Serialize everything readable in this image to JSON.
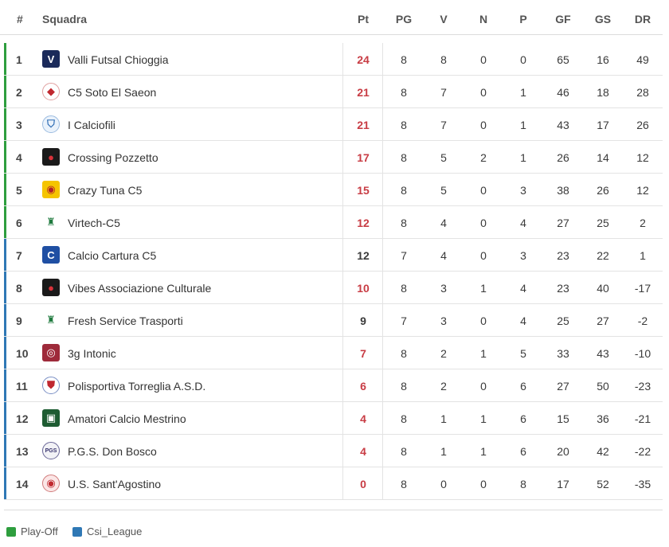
{
  "header": {
    "pos": "#",
    "team": "Squadra",
    "pt": "Pt",
    "pg": "PG",
    "v": "V",
    "n": "N",
    "p": "P",
    "gf": "GF",
    "gs": "GS",
    "dr": "DR"
  },
  "colors": {
    "playoff": "#2e9e3e",
    "csi": "#2f78b5",
    "red_points": "#c83c44",
    "dark_points": "#3a3a3a"
  },
  "rows": [
    {
      "pos": "1",
      "team": "Valli Futsal Chioggia",
      "pt": "24",
      "pg": "8",
      "v": "8",
      "n": "0",
      "p": "0",
      "gf": "65",
      "gs": "16",
      "dr": "49",
      "zone": "playoff",
      "pt_red": true,
      "logo": "crest-dark-blue"
    },
    {
      "pos": "2",
      "team": "C5 Soto El Saeon",
      "pt": "21",
      "pg": "8",
      "v": "7",
      "n": "0",
      "p": "1",
      "gf": "46",
      "gs": "18",
      "dr": "28",
      "zone": "playoff",
      "pt_red": true,
      "logo": "crest-red-white"
    },
    {
      "pos": "3",
      "team": "I Calciofili",
      "pt": "21",
      "pg": "8",
      "v": "7",
      "n": "0",
      "p": "1",
      "gf": "43",
      "gs": "17",
      "dr": "26",
      "zone": "playoff",
      "pt_red": true,
      "logo": "crest-light-blue"
    },
    {
      "pos": "4",
      "team": "Crossing Pozzetto",
      "pt": "17",
      "pg": "8",
      "v": "5",
      "n": "2",
      "p": "1",
      "gf": "26",
      "gs": "14",
      "dr": "12",
      "zone": "playoff",
      "pt_red": true,
      "logo": "crest-black-red"
    },
    {
      "pos": "5",
      "team": "Crazy Tuna C5",
      "pt": "15",
      "pg": "8",
      "v": "5",
      "n": "0",
      "p": "3",
      "gf": "38",
      "gs": "26",
      "dr": "12",
      "zone": "playoff",
      "pt_red": true,
      "logo": "crest-yellow"
    },
    {
      "pos": "6",
      "team": "Virtech-C5",
      "pt": "12",
      "pg": "8",
      "v": "4",
      "n": "0",
      "p": "4",
      "gf": "27",
      "gs": "25",
      "dr": "2",
      "zone": "playoff",
      "pt_red": true,
      "logo": "crest-green"
    },
    {
      "pos": "7",
      "team": "Calcio Cartura C5",
      "pt": "12",
      "pg": "7",
      "v": "4",
      "n": "0",
      "p": "3",
      "gf": "23",
      "gs": "22",
      "dr": "1",
      "zone": "csi",
      "pt_red": false,
      "logo": "crest-blue-shield"
    },
    {
      "pos": "8",
      "team": "Vibes Associazione Culturale",
      "pt": "10",
      "pg": "8",
      "v": "3",
      "n": "1",
      "p": "4",
      "gf": "23",
      "gs": "40",
      "dr": "-17",
      "zone": "csi",
      "pt_red": true,
      "logo": "crest-black-red"
    },
    {
      "pos": "9",
      "team": "Fresh Service Trasporti",
      "pt": "9",
      "pg": "7",
      "v": "3",
      "n": "0",
      "p": "4",
      "gf": "25",
      "gs": "27",
      "dr": "-2",
      "zone": "csi",
      "pt_red": false,
      "logo": "crest-green"
    },
    {
      "pos": "10",
      "team": "3g Intonic",
      "pt": "7",
      "pg": "8",
      "v": "2",
      "n": "1",
      "p": "5",
      "gf": "33",
      "gs": "43",
      "dr": "-10",
      "zone": "csi",
      "pt_red": true,
      "logo": "crest-maroon"
    },
    {
      "pos": "11",
      "team": "Polisportiva Torreglia A.S.D.",
      "pt": "6",
      "pg": "8",
      "v": "2",
      "n": "0",
      "p": "6",
      "gf": "27",
      "gs": "50",
      "dr": "-23",
      "zone": "csi",
      "pt_red": true,
      "logo": "crest-red-blue"
    },
    {
      "pos": "12",
      "team": "Amatori Calcio Mestrino",
      "pt": "4",
      "pg": "8",
      "v": "1",
      "n": "1",
      "p": "6",
      "gf": "15",
      "gs": "36",
      "dr": "-21",
      "zone": "csi",
      "pt_red": true,
      "logo": "crest-dark-green"
    },
    {
      "pos": "13",
      "team": "P.G.S. Don Bosco",
      "pt": "4",
      "pg": "8",
      "v": "1",
      "n": "1",
      "p": "6",
      "gf": "20",
      "gs": "42",
      "dr": "-22",
      "zone": "csi",
      "pt_red": true,
      "logo": "crest-pgs"
    },
    {
      "pos": "14",
      "team": "U.S. Sant'Agostino",
      "pt": "0",
      "pg": "8",
      "v": "0",
      "n": "0",
      "p": "8",
      "gf": "17",
      "gs": "52",
      "dr": "-35",
      "zone": "csi",
      "pt_red": true,
      "logo": "crest-red-circle"
    }
  ],
  "legend": [
    {
      "label": "Play-Off",
      "color": "#2e9e3e"
    },
    {
      "label": "Csi_League",
      "color": "#2f78b5"
    }
  ]
}
